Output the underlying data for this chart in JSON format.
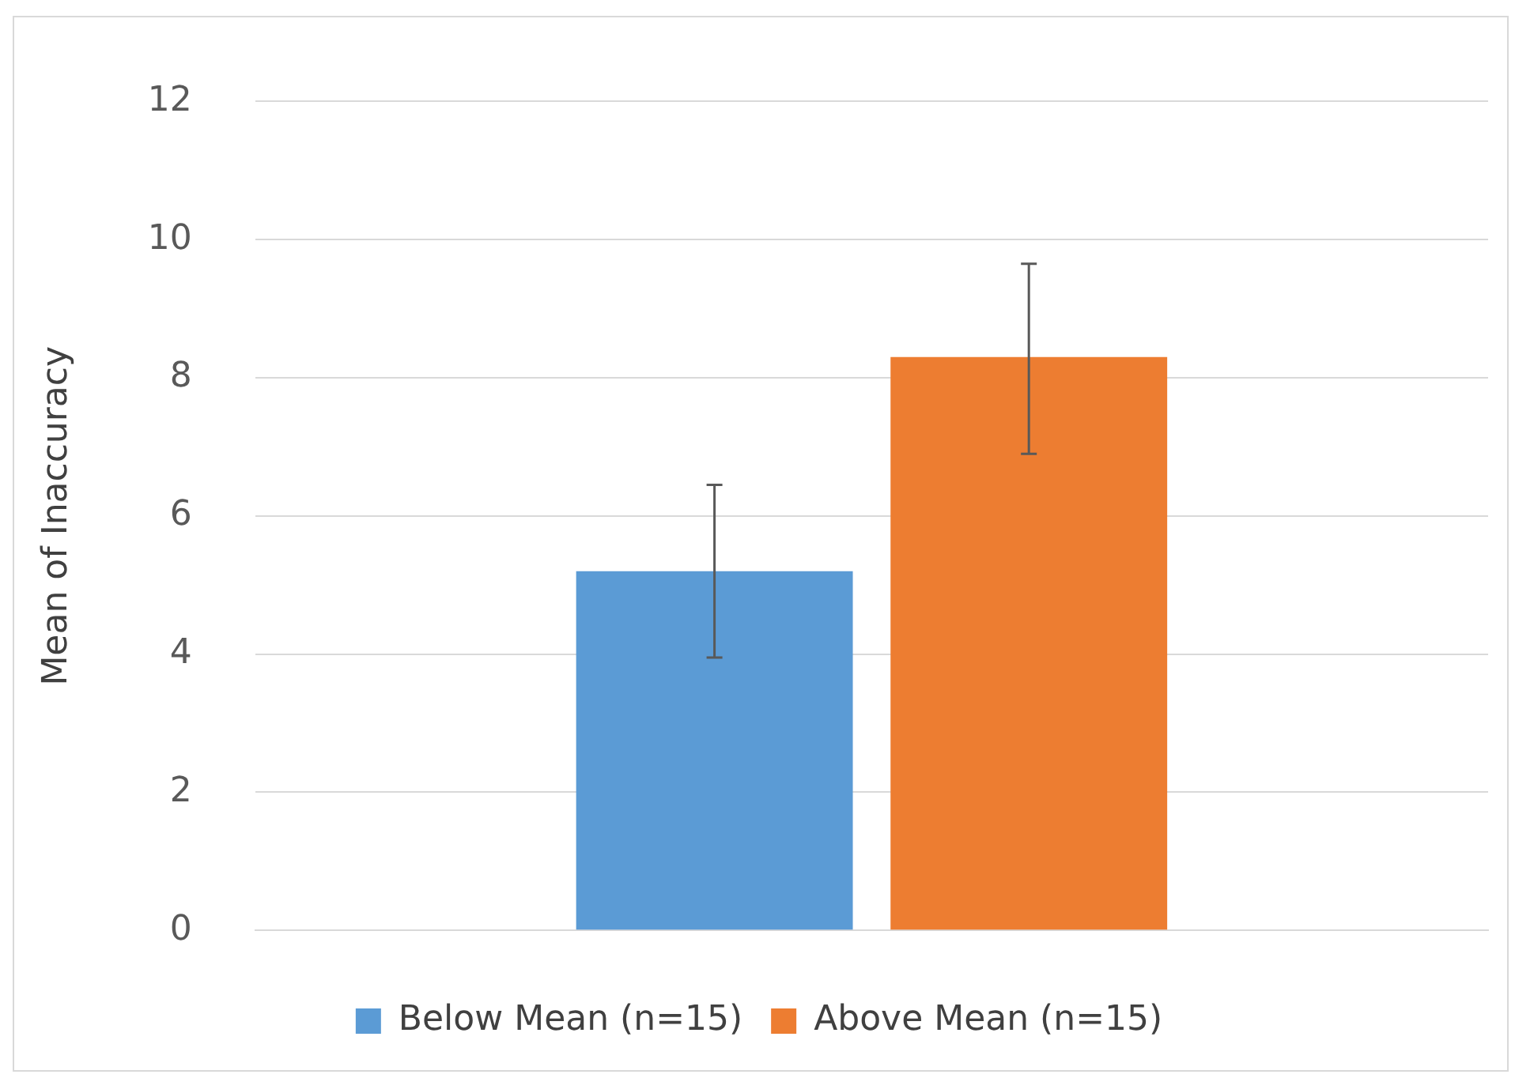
{
  "chart_data": {
    "type": "bar",
    "ylabel": "Mean of Inaccuracy",
    "categories": [
      null
    ],
    "series": [
      {
        "name": "Below Mean (n=15)",
        "color": "#5b9bd5",
        "values": [
          5.2
        ],
        "errors": [
          [
            3.95,
            6.45
          ]
        ]
      },
      {
        "name": "Above Mean (n=15)",
        "color": "#ed7d31",
        "values": [
          8.3
        ],
        "errors": [
          [
            6.9,
            9.65
          ]
        ]
      }
    ],
    "ylim": [
      0,
      12
    ],
    "yticks": [
      0,
      2,
      4,
      6,
      8,
      10,
      12
    ],
    "grid": "y",
    "legend": "bottom"
  }
}
